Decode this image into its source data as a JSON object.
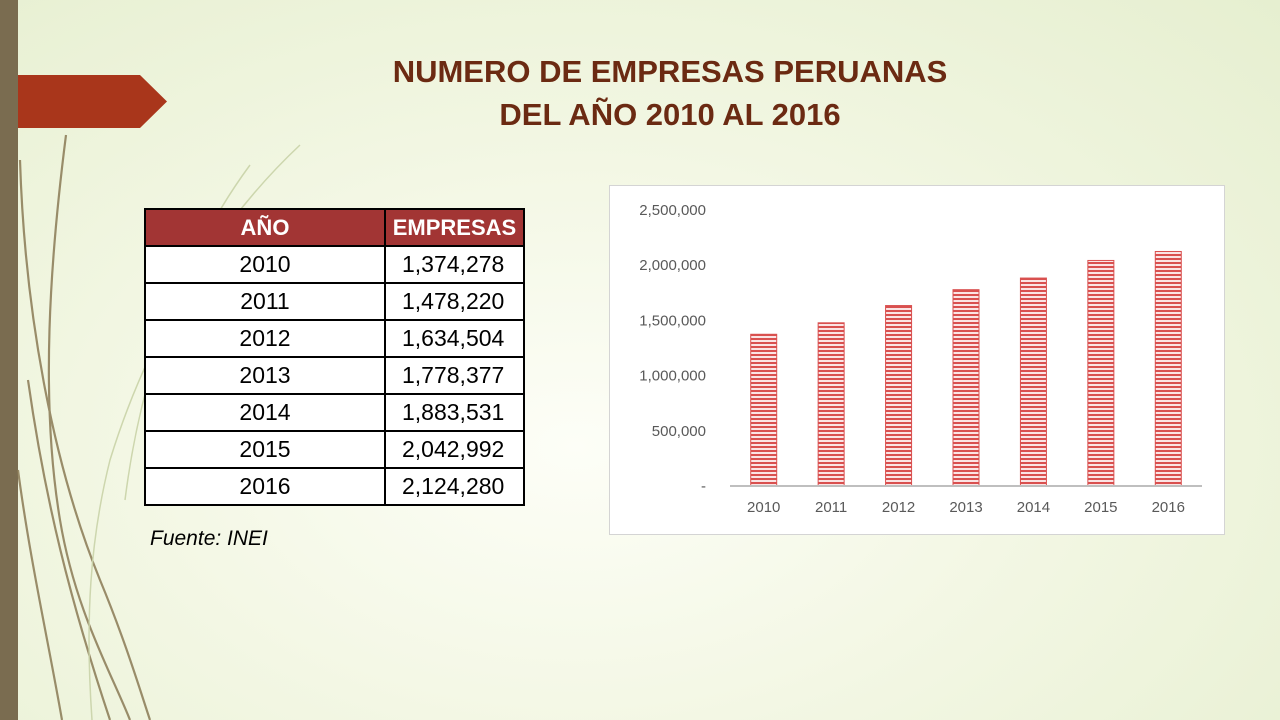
{
  "slide": {
    "title_line1": "NUMERO DE EMPRESAS PERUANAS",
    "title_line2": "DEL AÑO 2010 AL 2016",
    "accent_color": "#a9361b",
    "title_color": "#6b2a12"
  },
  "table": {
    "headers": [
      "AÑO",
      "EMPRESAS"
    ],
    "rows": [
      {
        "year": "2010",
        "value": "1,374,278"
      },
      {
        "year": "2011",
        "value": "1,478,220"
      },
      {
        "year": "2012",
        "value": "1,634,504"
      },
      {
        "year": "2013",
        "value": "1,778,377"
      },
      {
        "year": "2014",
        "value": "1,883,531"
      },
      {
        "year": "2015",
        "value": "2,042,992"
      },
      {
        "year": "2016",
        "value": "2,124,280"
      }
    ],
    "header_color": "#a23534"
  },
  "source_note": "Fuente: INEI",
  "chart_data": {
    "type": "bar",
    "categories": [
      "2010",
      "2011",
      "2012",
      "2013",
      "2014",
      "2015",
      "2016"
    ],
    "values": [
      1374278,
      1478220,
      1634504,
      1778377,
      1883531,
      2042992,
      2124280
    ],
    "ylim": [
      0,
      2500000
    ],
    "yticks": [
      0,
      500000,
      1000000,
      1500000,
      2000000,
      2500000
    ],
    "ytick_labels": [
      "-",
      "500,000",
      "1,000,000",
      "1,500,000",
      "2,000,000",
      "2,500,000"
    ],
    "bar_color": "#d9504f",
    "grid": false,
    "legend": "none"
  }
}
